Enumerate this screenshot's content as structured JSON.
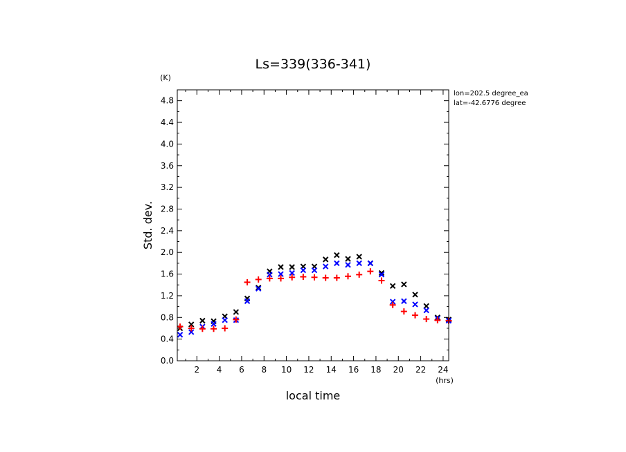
{
  "chart_data": {
    "type": "scatter",
    "title": "Ls=339(336-341)",
    "xlabel": "local time",
    "ylabel": "Std. dev.",
    "x_unit": "(hrs)",
    "y_unit": "(K)",
    "xlim": [
      0.25,
      24.5
    ],
    "ylim": [
      0,
      5.0
    ],
    "x_ticks": [
      "2",
      "4",
      "6",
      "8",
      "10",
      "12",
      "14",
      "16",
      "18",
      "20",
      "22",
      "24"
    ],
    "y_ticks": [
      "0.0",
      "0.4",
      "0.8",
      "1.2",
      "1.6",
      "2.0",
      "2.4",
      "2.8",
      "3.2",
      "3.6",
      "4.0",
      "4.4",
      "4.8"
    ],
    "annotations": [
      "lon=202.5 degree_ea",
      "lat=-42.6776 degree"
    ],
    "grid": false,
    "x": [
      0.5,
      1.5,
      2.5,
      3.5,
      4.5,
      5.5,
      6.5,
      7.5,
      8.5,
      9.5,
      10.5,
      11.5,
      12.5,
      13.5,
      14.5,
      15.5,
      16.5,
      17.5,
      18.5,
      19.5,
      20.5,
      21.5,
      22.5,
      23.5,
      24.5
    ],
    "series": [
      {
        "marker": "x",
        "color": "#000000",
        "values": [
          0.6,
          0.67,
          0.74,
          0.73,
          0.82,
          0.9,
          1.15,
          1.35,
          1.65,
          1.73,
          1.73,
          1.74,
          1.74,
          1.87,
          1.95,
          1.88,
          1.92,
          1.8,
          1.62,
          1.38,
          1.41,
          1.22,
          1.01,
          0.8,
          0.76
        ]
      },
      {
        "marker": "x",
        "color": "#0000ff",
        "values": [
          0.48,
          0.53,
          0.63,
          0.68,
          0.75,
          0.75,
          1.1,
          1.33,
          1.59,
          1.6,
          1.62,
          1.67,
          1.67,
          1.74,
          1.8,
          1.77,
          1.8,
          1.8,
          1.59,
          1.09,
          1.1,
          1.04,
          0.93,
          0.78,
          0.74
        ]
      },
      {
        "marker": "+",
        "color": "#ff0000",
        "values": [
          0.63,
          0.6,
          0.59,
          0.59,
          0.6,
          0.76,
          1.45,
          1.5,
          1.52,
          1.52,
          1.54,
          1.55,
          1.54,
          1.53,
          1.53,
          1.56,
          1.59,
          1.65,
          1.48,
          1.03,
          0.91,
          0.84,
          0.77,
          0.75,
          0.74
        ]
      }
    ]
  }
}
